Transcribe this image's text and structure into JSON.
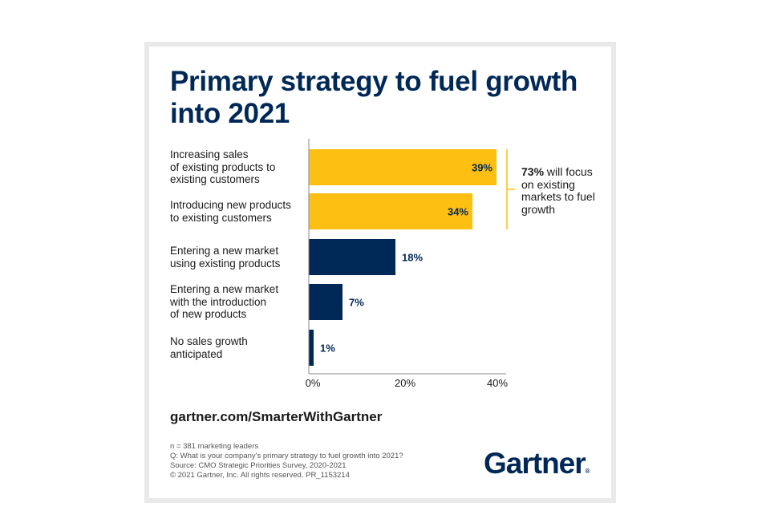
{
  "chart_data": {
    "type": "bar",
    "orientation": "horizontal",
    "title": "Primary strategy to fuel growth into 2021",
    "categories": [
      [
        "Increasing sales",
        "of existing products to",
        "existing customers"
      ],
      [
        "Introducing new products",
        "to existing customers"
      ],
      [
        "Entering a new market",
        "using existing products"
      ],
      [
        "Entering a new market",
        "with the introduction",
        "of new products"
      ],
      [
        "No sales growth",
        "anticipated"
      ]
    ],
    "values": [
      39,
      34,
      18,
      7,
      1
    ],
    "data_labels": [
      "39%",
      "34%",
      "18%",
      "7%",
      "1%"
    ],
    "bar_colors": [
      "#fdbf12",
      "#fdbf12",
      "#002856",
      "#002856",
      "#002856"
    ],
    "xlim": [
      0,
      40
    ],
    "x_ticks": [
      "0%",
      "20%",
      "40%"
    ],
    "grid": false,
    "annotation": {
      "bold": "73%",
      "text": [
        "will focus",
        "on existing",
        "markets to",
        "fuel growth"
      ],
      "color": "#fdbf12"
    }
  },
  "url": "gartner.com/SmarterWithGartner",
  "footnotes": [
    "n =  381 marketing leaders",
    "Q: What is your company's primary strategy to fuel growth into 2021?",
    "Source: CMO Strategic Priorities Survey, 2020-2021",
    "© 2021 Gartner, Inc. All rights reserved. PR_1153214"
  ],
  "logo": "Gartner",
  "colors": {
    "navy": "#002856",
    "gold": "#fdbf12"
  }
}
